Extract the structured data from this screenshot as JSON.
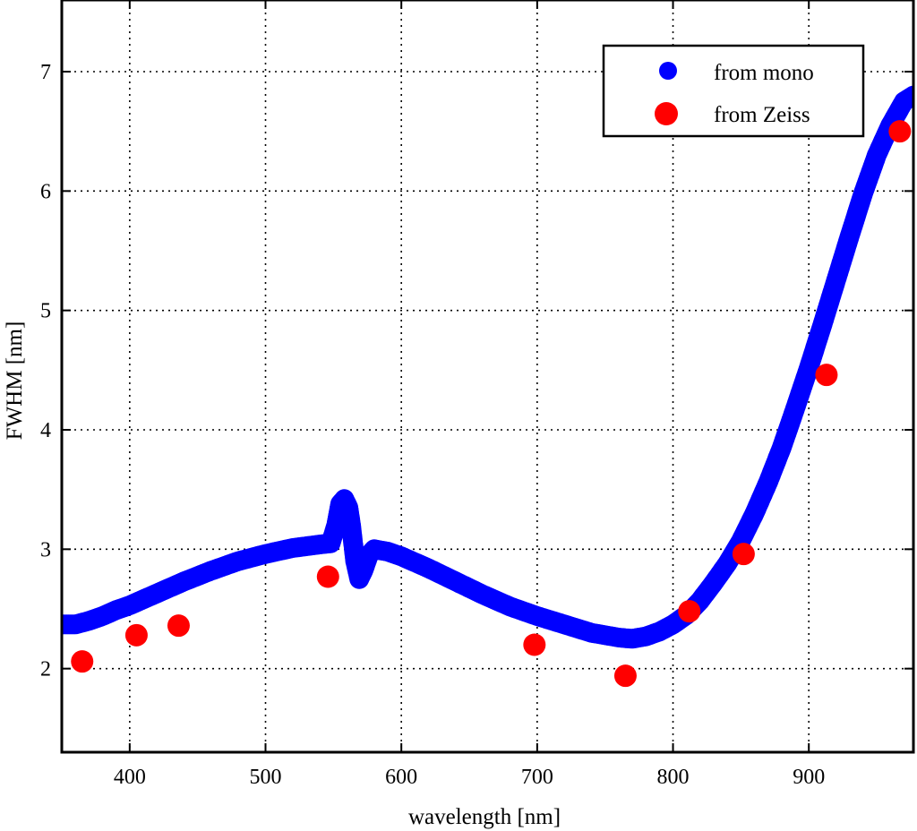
{
  "chart_data": {
    "type": "scatter",
    "title": "",
    "xlabel": "wavelength [nm]",
    "ylabel": "FWHM [nm]",
    "xlim": [
      350,
      977
    ],
    "ylim": [
      1.3,
      7.6
    ],
    "xticks": [
      400,
      500,
      600,
      700,
      800,
      900
    ],
    "yticks": [
      2,
      3,
      4,
      5,
      6,
      7
    ],
    "grid": true,
    "legend_position": "top-right",
    "legend": [
      "from mono",
      "from Zeiss"
    ],
    "colors": {
      "mono": "#0000ff",
      "zeiss": "#ff0000"
    },
    "series": [
      {
        "name": "from mono",
        "kind": "dense-curve",
        "x": [
          350,
          360,
          370,
          380,
          390,
          400,
          420,
          440,
          460,
          480,
          500,
          520,
          540,
          548,
          552,
          555,
          558,
          561,
          563,
          566,
          569,
          572,
          576,
          580,
          590,
          600,
          620,
          640,
          660,
          680,
          700,
          720,
          740,
          760,
          770,
          780,
          790,
          800,
          810,
          820,
          830,
          840,
          850,
          860,
          870,
          880,
          890,
          900,
          910,
          920,
          930,
          940,
          950,
          960,
          970,
          977
        ],
        "y": [
          2.37,
          2.37,
          2.4,
          2.44,
          2.49,
          2.53,
          2.63,
          2.73,
          2.82,
          2.9,
          2.96,
          3.01,
          3.04,
          3.05,
          3.2,
          3.38,
          3.42,
          3.35,
          3.2,
          2.9,
          2.75,
          2.82,
          2.95,
          3.0,
          2.98,
          2.94,
          2.84,
          2.73,
          2.62,
          2.52,
          2.44,
          2.37,
          2.3,
          2.26,
          2.25,
          2.27,
          2.31,
          2.37,
          2.45,
          2.57,
          2.72,
          2.88,
          3.07,
          3.3,
          3.56,
          3.85,
          4.18,
          4.52,
          4.88,
          5.25,
          5.62,
          5.98,
          6.3,
          6.55,
          6.75,
          6.8
        ]
      },
      {
        "name": "from Zeiss",
        "x": [
          365,
          405,
          436,
          546,
          698,
          765,
          812,
          852,
          913,
          967
        ],
        "y": [
          2.06,
          2.28,
          2.36,
          2.77,
          2.2,
          1.94,
          2.48,
          2.96,
          4.46,
          6.5
        ]
      }
    ]
  }
}
